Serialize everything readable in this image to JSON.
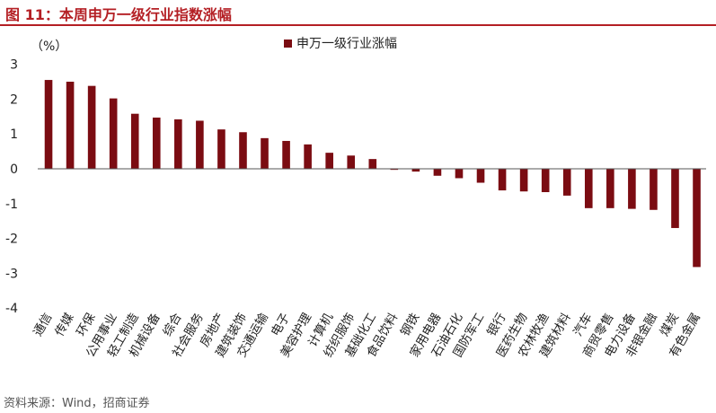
{
  "figure_title": "图 11：本周申万一级行业指数涨幅",
  "source_note": "资料来源：Wind，招商证券",
  "colors": {
    "bar": "#7b0c12",
    "title": "#b41f24",
    "axis": "#555555"
  },
  "chart_data": {
    "type": "bar",
    "title": "本周申万一级行业指数涨幅",
    "ylabel": "（%）",
    "ylim": [
      -4,
      3
    ],
    "yticks": [
      -4,
      -3,
      -2,
      -1,
      0,
      1,
      2,
      3
    ],
    "legend": "申万一级行业涨幅",
    "legend_position": "top-center",
    "categories": [
      "通信",
      "传媒",
      "环保",
      "公用事业",
      "轻工制造",
      "机械设备",
      "综合",
      "社会服务",
      "房地产",
      "建筑装饰",
      "交通运输",
      "电子",
      "美容护理",
      "计算机",
      "纺织服饰",
      "基础化工",
      "食品饮料",
      "钢铁",
      "家用电器",
      "石油石化",
      "国防军工",
      "银行",
      "医药生物",
      "农林牧渔",
      "建筑材料",
      "汽车",
      "商贸零售",
      "电力设备",
      "非银金融",
      "煤炭",
      "有色金属"
    ],
    "values": [
      2.55,
      2.5,
      2.38,
      2.02,
      1.58,
      1.47,
      1.42,
      1.38,
      1.13,
      1.05,
      0.88,
      0.8,
      0.7,
      0.46,
      0.38,
      0.28,
      -0.03,
      -0.08,
      -0.2,
      -0.27,
      -0.4,
      -0.62,
      -0.65,
      -0.67,
      -0.77,
      -1.13,
      -1.13,
      -1.15,
      -1.18,
      -1.7,
      -2.82
    ]
  }
}
